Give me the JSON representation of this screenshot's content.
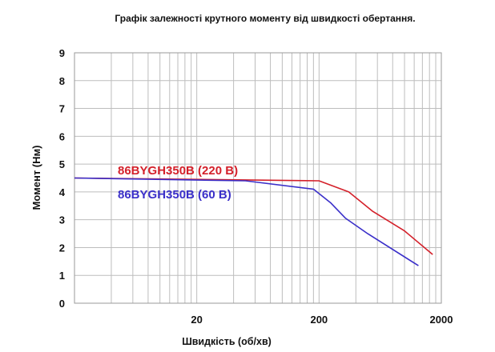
{
  "chart_data": {
    "type": "line",
    "title": "Графік залежності крутного моменту від швидкості обертання.",
    "xlabel": "Швидкість (об/хв)",
    "ylabel": "Момент (Нм)",
    "x_scale": "log",
    "xlim": [
      2,
      2000
    ],
    "ylim": [
      0,
      9
    ],
    "x_ticks": [
      20,
      200,
      2000
    ],
    "x_tick_labels": [
      "20",
      "200",
      "2000"
    ],
    "y_ticks": [
      0,
      1,
      2,
      3,
      4,
      5,
      6,
      7,
      8,
      9
    ],
    "y_tick_labels": [
      "0",
      "1",
      "2",
      "3",
      "4",
      "5",
      "6",
      "7",
      "8",
      "9"
    ],
    "grid": true,
    "series": [
      {
        "name": "86BYGH350B (220 В)",
        "color": "#d4202a",
        "x": [
          2,
          200,
          350,
          550,
          1000,
          1700
        ],
        "y": [
          4.5,
          4.4,
          4.0,
          3.3,
          2.6,
          1.75
        ]
      },
      {
        "name": "86BYGH350B (60 В)",
        "color": "#3a2fc9",
        "x": [
          2,
          50,
          180,
          250,
          330,
          500,
          1300
        ],
        "y": [
          4.5,
          4.4,
          4.1,
          3.6,
          3.05,
          2.5,
          1.35
        ]
      }
    ]
  }
}
